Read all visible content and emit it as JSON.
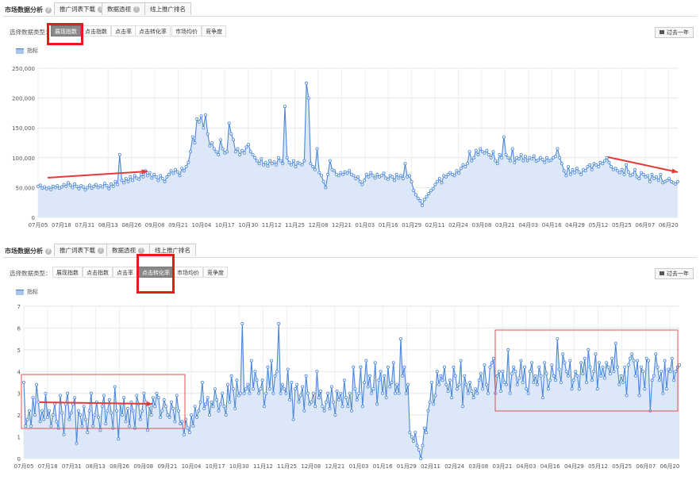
{
  "panels": [
    {
      "title": "市场数据分析",
      "tabs": [
        "推广词表下载",
        "数据透视",
        "线上推广排名"
      ],
      "filter_label": "选择数据类型：",
      "filters": [
        "展现指数",
        "点击指数",
        "点击率",
        "点击转化率",
        "市场均价",
        "竞争度"
      ],
      "active_filter": "展现指数",
      "year_button": "过去一年",
      "legend": "指标"
    },
    {
      "title": "市场数据分析",
      "tabs": [
        "推广词表下载",
        "数据透视",
        "线上推广排名"
      ],
      "filter_label": "选择数据类型：",
      "filters": [
        "展现指数",
        "点击指数",
        "点击率",
        "点击转化率",
        "市场均价",
        "竞争度"
      ],
      "active_filter": "点击转化率",
      "year_button": "过去一年",
      "legend": "指标"
    }
  ],
  "colors": {
    "line": "#4a86d9",
    "fill": "#dce8f8",
    "highlight": "#e31b1b",
    "arrow": "#e33a3a"
  },
  "chart_data": [
    {
      "type": "area",
      "x_ticks": [
        "07月05",
        "07月18",
        "07月31",
        "08月13",
        "08月26",
        "09月08",
        "09月21",
        "10月04",
        "10月17",
        "10月30",
        "11月12",
        "11月25",
        "12月08",
        "12月21",
        "01月03",
        "01月16",
        "01月29",
        "02月11",
        "02月24",
        "03月08",
        "03月21",
        "04月03",
        "04月16",
        "04月29",
        "05月12",
        "05月25",
        "06月07",
        "06月20"
      ],
      "y_ticks": [
        "0",
        "50,000",
        "100,000",
        "150,000",
        "200,000",
        "250,000"
      ],
      "ylim": [
        0,
        250000
      ],
      "series": [
        {
          "name": "指标",
          "values": [
            52000,
            54000,
            49000,
            51000,
            48000,
            50000,
            47000,
            52000,
            50000,
            53000,
            49000,
            51000,
            55000,
            52000,
            58000,
            54000,
            50000,
            56000,
            52000,
            48000,
            53000,
            51000,
            46000,
            50000,
            54000,
            49000,
            52000,
            55000,
            50000,
            53000,
            51000,
            57000,
            53000,
            48000,
            56000,
            52000,
            60000,
            55000,
            105000,
            62000,
            58000,
            65000,
            60000,
            68000,
            62000,
            70000,
            66000,
            64000,
            72000,
            68000,
            78000,
            70000,
            75000,
            66000,
            72000,
            68000,
            62000,
            70000,
            65000,
            60000,
            68000,
            72000,
            78000,
            74000,
            80000,
            76000,
            70000,
            82000,
            78000,
            85000,
            92000,
            110000,
            135000,
            125000,
            165000,
            160000,
            170000,
            150000,
            172000,
            140000,
            120000,
            125000,
            115000,
            110000,
            105000,
            130000,
            115000,
            108000,
            110000,
            158000,
            140000,
            130000,
            110000,
            115000,
            105000,
            112000,
            108000,
            118000,
            122000,
            110000,
            105000,
            100000,
            95000,
            90000,
            98000,
            88000,
            92000,
            86000,
            95000,
            90000,
            93000,
            88000,
            100000,
            95000,
            90000,
            186000,
            100000,
            92000,
            88000,
            95000,
            85000,
            92000,
            90000,
            88000,
            95000,
            225000,
            200000,
            90000,
            85000,
            80000,
            115000,
            75000,
            70000,
            60000,
            50000,
            72000,
            95000,
            80000,
            78000,
            72000,
            70000,
            75000,
            72000,
            76000,
            74000,
            78000,
            72000,
            70000,
            65000,
            68000,
            60000,
            55000,
            62000,
            72000,
            68000,
            75000,
            70000,
            66000,
            72000,
            68000,
            70000,
            74000,
            66000,
            64000,
            70000,
            68000,
            62000,
            72000,
            66000,
            70000,
            65000,
            90000,
            68000,
            70000,
            60000,
            45000,
            38000,
            32000,
            28000,
            20000,
            30000,
            35000,
            40000,
            45000,
            48000,
            55000,
            60000,
            65000,
            58000,
            70000,
            68000,
            72000,
            75000,
            72000,
            70000,
            78000,
            74000,
            82000,
            88000,
            85000,
            90000,
            110000,
            95000,
            100000,
            112000,
            105000,
            115000,
            110000,
            108000,
            112000,
            105000,
            100000,
            110000,
            95000,
            90000,
            105000,
            100000,
            135000,
            105000,
            100000,
            95000,
            115000,
            92000,
            100000,
            98000,
            105000,
            95000,
            102000,
            95000,
            100000,
            98000,
            103000,
            94000,
            96000,
            100000,
            97000,
            92000,
            100000,
            95000,
            96000,
            100000,
            102000,
            115000,
            100000,
            90000,
            78000,
            70000,
            85000,
            72000,
            80000,
            75000,
            82000,
            76000,
            72000,
            80000,
            78000,
            85000,
            88000,
            80000,
            90000,
            88000,
            85000,
            92000,
            90000,
            95000,
            100000,
            92000,
            85000,
            80000,
            82000,
            78000,
            75000,
            80000,
            72000,
            88000,
            76000,
            70000,
            72000,
            80000,
            68000,
            65000,
            75000,
            72000,
            68000,
            70000,
            60000,
            72000,
            65000,
            68000,
            62000,
            72000,
            58000,
            60000,
            62000,
            65000,
            60000,
            58000,
            56000,
            60000
          ]
        }
      ]
    },
    {
      "type": "area",
      "x_ticks": [
        "07月05",
        "07月18",
        "07月31",
        "08月13",
        "08月26",
        "09月08",
        "09月21",
        "10月04",
        "10月17",
        "10月30",
        "11月12",
        "11月25",
        "12月08",
        "12月21",
        "01月03",
        "01月16",
        "01月29",
        "02月11",
        "02月24",
        "03月08",
        "03月21",
        "04月03",
        "04月16",
        "04月29",
        "05月12",
        "05月25",
        "06月07",
        "06月20"
      ],
      "y_ticks": [
        "0",
        "1",
        "2",
        "3",
        "4",
        "5",
        "6",
        "7"
      ],
      "ylim": [
        0,
        7
      ],
      "series": [
        {
          "name": "指标",
          "values": [
            3.5,
            1.5,
            1.8,
            2.2,
            1.5,
            2.8,
            2.0,
            3.4,
            2.6,
            1.7,
            2.2,
            1.8,
            3.0,
            1.9,
            2.2,
            1.5,
            2.0,
            2.5,
            1.7,
            1.4,
            2.9,
            2.1,
            1.1,
            2.5,
            3.0,
            1.8,
            2.1,
            2.5,
            2.8,
            0.7,
            2.2,
            2.0,
            1.5,
            2.4,
            1.8,
            1.2,
            2.2,
            3.0,
            1.5,
            2.0,
            2.6,
            1.9,
            1.3,
            2.4,
            2.9,
            1.6,
            2.2,
            2.7,
            2.1,
            1.4,
            3.3,
            2.2,
            0.9,
            2.5,
            2.0,
            2.8,
            1.7,
            2.3,
            1.5,
            2.6,
            2.2,
            1.4,
            2.9,
            2.5,
            1.8,
            2.2,
            3.0,
            2.6,
            1.3,
            2.4,
            2.0,
            2.8,
            2.4,
            3.0,
            2.8,
            1.9,
            2.2,
            2.7,
            2.4,
            2.0,
            1.9,
            2.6,
            2.3,
            1.7,
            2.9,
            2.2,
            1.6,
            1.7,
            1.1,
            1.8,
            1.4,
            1.2,
            2.0,
            1.5,
            2.4,
            1.9,
            2.2,
            2.6,
            3.5,
            2.3,
            2.5,
            2.8,
            2.0,
            2.6,
            2.4,
            3.2,
            2.7,
            2.2,
            2.5,
            3.0,
            2.4,
            2.0,
            3.4,
            2.6,
            3.8,
            3.2,
            2.3,
            3.6,
            2.9,
            3.0,
            6.2,
            3.0,
            3.2,
            3.4,
            3.0,
            4.5,
            3.2,
            4.0,
            3.6,
            3.0,
            3.2,
            3.6,
            2.4,
            3.0,
            4.2,
            3.2,
            4.5,
            3.0,
            3.8,
            4.0,
            6.2,
            3.0,
            3.4,
            3.2,
            3.0,
            4.1,
            2.7,
            3.5,
            1.8,
            3.2,
            3.4,
            2.6,
            2.9,
            3.3,
            2.2,
            3.8,
            3.0,
            2.5,
            2.6,
            3.0,
            2.4,
            4.0,
            2.8,
            3.1,
            2.4,
            2.2,
            2.6,
            3.0,
            2.3,
            3.3,
            2.6,
            2.0,
            3.1,
            2.7,
            3.0,
            2.4,
            3.6,
            2.8,
            2.4,
            3.0,
            2.2,
            4.2,
            3.2,
            2.7,
            3.0,
            4.2,
            2.4,
            3.5,
            4.5,
            3.3,
            3.8,
            3.0,
            3.2,
            4.4,
            2.5,
            3.6,
            4.0,
            3.0,
            3.8,
            2.8,
            4.2,
            3.3,
            3.5,
            4.4,
            3.0,
            3.4,
            3.0,
            5.5,
            3.8,
            4.2,
            3.0,
            3.4,
            1.2,
            1.0,
            0.8,
            1.2,
            0.6,
            0.4,
            0.0,
            0.6,
            1.4,
            1.2,
            2.2,
            2.6,
            3.5,
            2.5,
            2.9,
            4.0,
            3.4,
            3.8,
            3.6,
            4.2,
            3.4,
            3.1,
            3.6,
            2.8,
            4.2,
            3.8,
            3.2,
            3.4,
            4.5,
            2.4,
            3.8,
            3.4,
            3.0,
            3.5,
            3.1,
            2.8,
            3.2,
            3.0,
            3.6,
            3.9,
            3.2,
            4.3,
            3.4,
            3.0,
            4.2,
            4.4,
            4.6,
            3.0,
            3.8,
            4.0,
            3.1,
            4.0,
            3.5,
            3.4,
            5.0,
            3.0,
            3.9,
            4.2,
            4.0,
            3.4,
            3.7,
            4.5,
            3.5,
            4.2,
            3.2,
            3.0,
            4.0,
            4.4,
            3.5,
            3.8,
            3.4,
            4.2,
            3.8,
            2.8,
            4.4,
            3.9,
            3.2,
            3.6,
            4.3,
            3.8,
            3.6,
            5.5,
            4.1,
            3.5,
            4.8,
            4.4,
            4.0,
            3.8,
            4.5,
            3.2,
            3.6,
            4.0,
            3.8,
            3.2,
            4.4,
            3.9,
            4.6,
            3.5,
            5.0,
            4.2,
            3.6,
            4.0,
            4.8,
            3.2,
            4.4,
            3.8,
            4.2,
            3.7,
            4.4,
            4.2,
            3.9,
            4.6,
            4.0,
            5.3,
            4.2,
            3.4,
            3.8,
            3.5,
            4.2,
            2.9,
            4.3,
            4.6,
            4.8,
            4.5,
            3.8,
            4.5,
            2.9,
            4.2,
            4.0,
            3.2,
            4.6,
            4.5,
            2.2,
            3.6,
            3.8,
            4.8,
            4.2,
            3.6,
            4.0,
            3.0,
            4.5,
            3.2,
            4.1,
            4.0,
            4.6,
            3.6,
            4.0,
            4.2,
            4.3
          ]
        }
      ]
    }
  ]
}
